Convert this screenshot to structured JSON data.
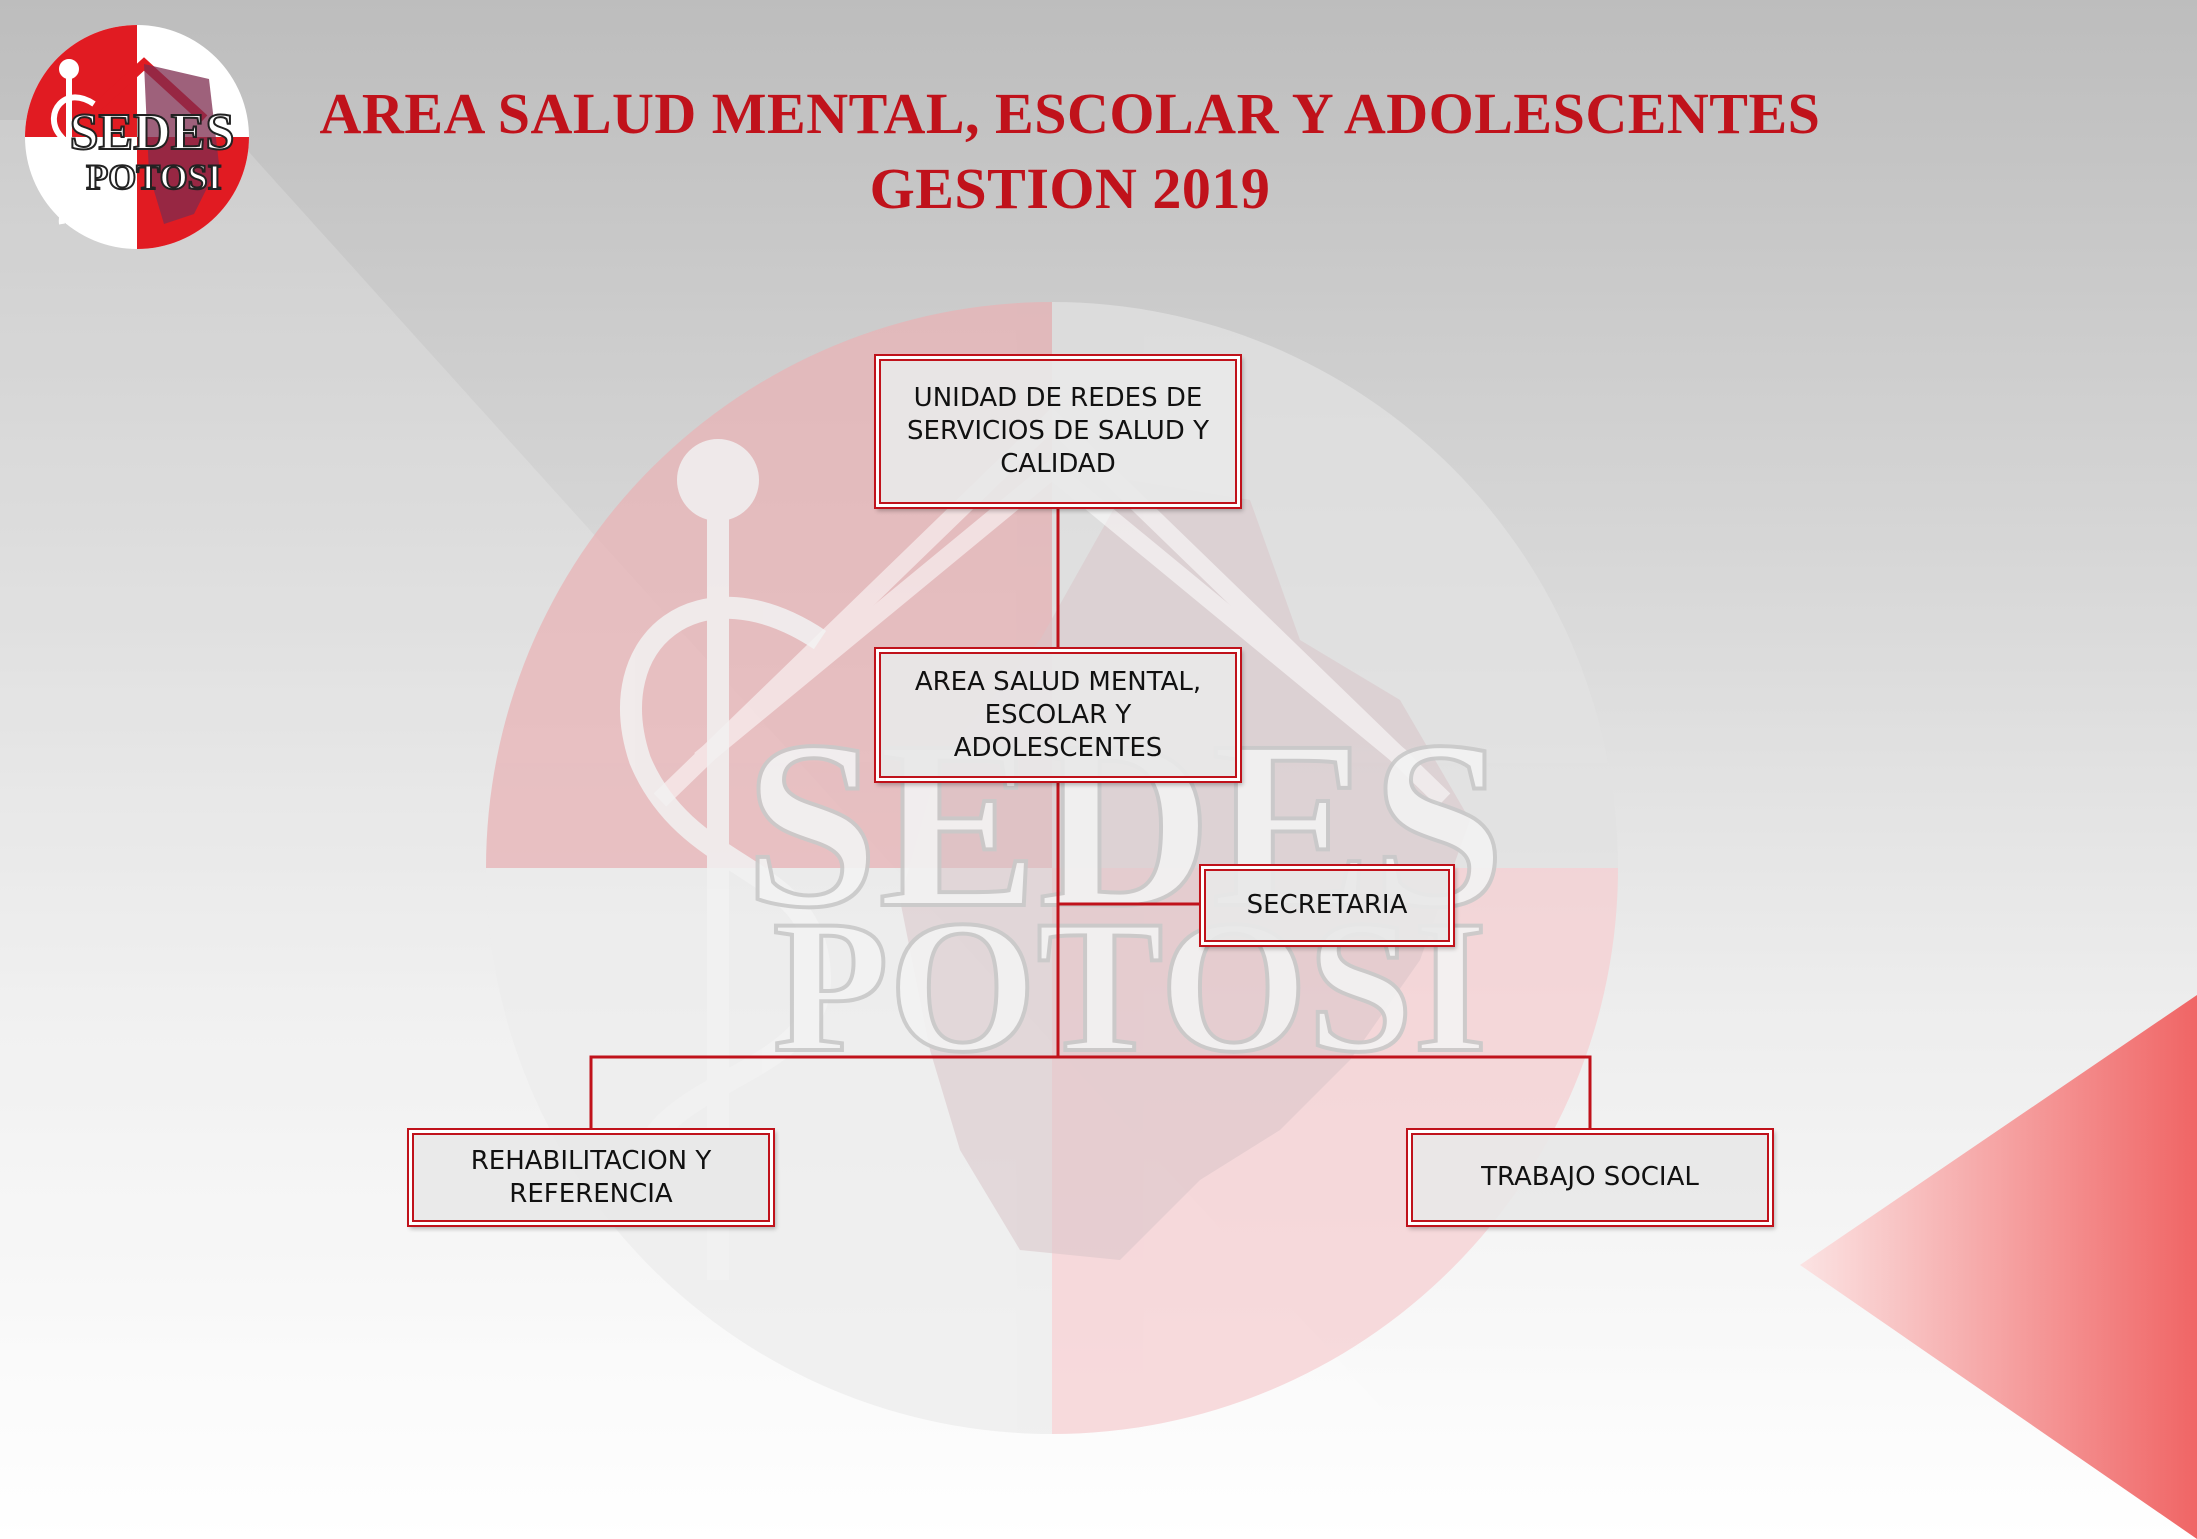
{
  "header": {
    "title_line1": "AREA SALUD MENTAL, ESCOLAR Y ADOLESCENTES",
    "title_line2": "GESTION 2019"
  },
  "logo": {
    "line1": "SEDES",
    "line2": "POTOSI",
    "icon": "caduceus-icon"
  },
  "watermark": {
    "line1": "SEDES",
    "line2": "POTOSI"
  },
  "org_chart": {
    "root": "UNIDAD DE REDES DE SERVICIOS DE SALUD Y CALIDAD",
    "area": "AREA SALUD MENTAL, ESCOLAR Y ADOLESCENTES",
    "staff": "SECRETARIA",
    "children": [
      "REHABILITACION Y REFERENCIA",
      "TRABAJO SOCIAL"
    ]
  },
  "colors": {
    "accent": "#c0121b",
    "box_fill": "#e8e8e8",
    "connector": "#c0121b"
  }
}
